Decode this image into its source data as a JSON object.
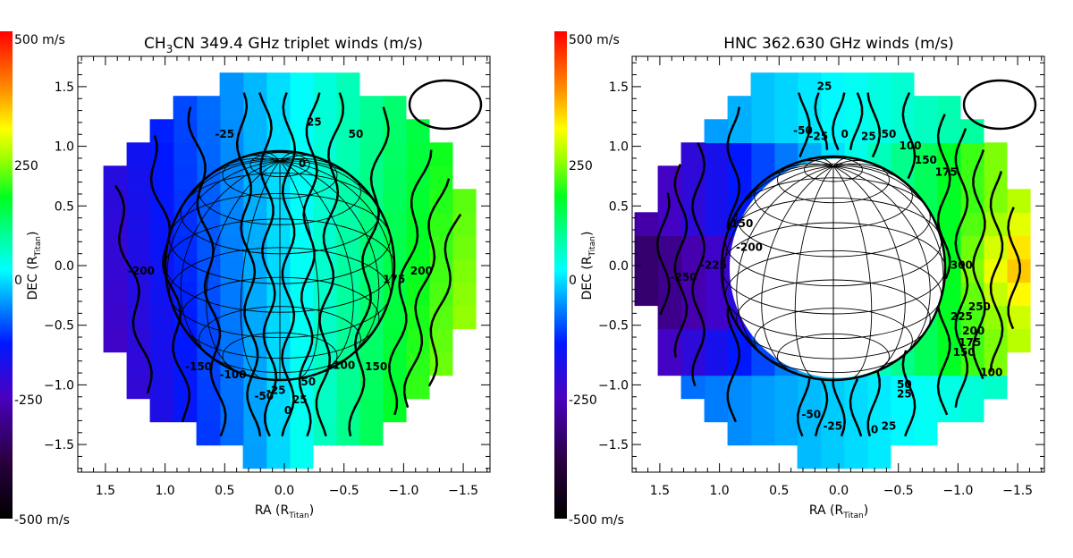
{
  "chart_data": [
    {
      "type": "heatmap",
      "panel": "left",
      "title": "CH3CN 349.4 GHz triplet winds (m/s)",
      "title_parts": {
        "pre": "CH",
        "sub": "3",
        "post": "CN 349.4 GHz triplet winds (m/s)"
      },
      "xlabel": "RA (R_Titan)",
      "xlabel_parts": {
        "pre": "RA (R",
        "sub": "Titan",
        "post": ")"
      },
      "ylabel": "DEC (R_Titan)",
      "ylabel_parts": {
        "pre": "DEC (R",
        "sub": "Titan",
        "post": ")"
      },
      "xlim": [
        1.75,
        -1.75
      ],
      "ylim": [
        -1.75,
        1.75
      ],
      "xticks": [
        1.5,
        1.0,
        0.5,
        0.0,
        -0.5,
        -1.0,
        -1.5
      ],
      "xtick_labels": [
        "1.5",
        "1.0",
        "0.5",
        "0.0",
        "−0.5",
        "−1.0",
        "−1.5"
      ],
      "yticks": [
        1.5,
        1.0,
        0.5,
        0.0,
        -0.5,
        -1.0,
        -1.5
      ],
      "ytick_labels": [
        "1.5",
        "1.0",
        "0.5",
        "0.0",
        "−0.5",
        "−1.0",
        "−1.5"
      ],
      "colorbar": {
        "min": -500,
        "max": 500,
        "units": "m/s",
        "labels": [
          "500 m/s",
          "250",
          "0",
          "-250",
          "-500 m/s"
        ],
        "label_values": [
          500,
          250,
          0,
          -250,
          -500
        ]
      },
      "wind_field": {
        "description": "velocity increases east-to-west; ~-225 at RA 1.5, ~0 near RA 0, ~+225 at RA -1.5",
        "ra_gradient_m_s_per_unit": -150
      },
      "contour_labels": [
        {
          "text": "-25",
          "ra": 0.5,
          "dec": 1.1
        },
        {
          "text": "25",
          "ra": -0.25,
          "dec": 1.2
        },
        {
          "text": "50",
          "ra": -0.6,
          "dec": 1.1
        },
        {
          "text": "0",
          "ra": -0.15,
          "dec": 0.85
        },
        {
          "text": "-200",
          "ra": 1.2,
          "dec": -0.05
        },
        {
          "text": "-150",
          "ra": 0.72,
          "dec": -0.85
        },
        {
          "text": "-100",
          "ra": 0.43,
          "dec": -0.92
        },
        {
          "text": "-50",
          "ra": 0.17,
          "dec": -1.1
        },
        {
          "text": "-25",
          "ra": 0.07,
          "dec": -1.05
        },
        {
          "text": "0",
          "ra": -0.03,
          "dec": -1.22
        },
        {
          "text": "25",
          "ra": -0.13,
          "dec": -1.13
        },
        {
          "text": "50",
          "ra": -0.2,
          "dec": -0.98
        },
        {
          "text": "100",
          "ra": -0.5,
          "dec": -0.84
        },
        {
          "text": "150",
          "ra": -0.77,
          "dec": -0.85
        },
        {
          "text": "175",
          "ra": -0.92,
          "dec": -0.12
        },
        {
          "text": "200",
          "ra": -1.15,
          "dec": -0.05
        }
      ],
      "blanked_disk": false,
      "beam": "ellipse top-right"
    },
    {
      "type": "heatmap",
      "panel": "right",
      "title": "HNC 362.630 GHz winds (m/s)",
      "title_parts": {
        "pre": "HNC 362.630 GHz winds (m/s)",
        "sub": "",
        "post": ""
      },
      "xlabel": "RA (R_Titan)",
      "xlabel_parts": {
        "pre": "RA (R",
        "sub": "Titan",
        "post": ")"
      },
      "ylabel": "DEC (R_Titan)",
      "ylabel_parts": {
        "pre": "DEC (R",
        "sub": "Titan",
        "post": ")"
      },
      "xlim": [
        1.75,
        -1.75
      ],
      "ylim": [
        -1.75,
        1.75
      ],
      "xticks": [
        1.5,
        1.0,
        0.5,
        0.0,
        -0.5,
        -1.0,
        -1.5
      ],
      "xtick_labels": [
        "1.5",
        "1.0",
        "0.5",
        "0.0",
        "−0.5",
        "−1.0",
        "−1.5"
      ],
      "yticks": [
        1.5,
        1.0,
        0.5,
        0.0,
        -0.5,
        -1.0,
        -1.5
      ],
      "ytick_labels": [
        "1.5",
        "1.0",
        "0.5",
        "0.0",
        "−0.5",
        "−1.0",
        "−1.5"
      ],
      "colorbar": {
        "min": -500,
        "max": 500,
        "units": "m/s",
        "labels": [
          "500 m/s",
          "250",
          "0",
          "-250",
          "-500 m/s"
        ],
        "label_values": [
          500,
          250,
          0,
          -250,
          -500
        ]
      },
      "wind_field": {
        "description": "limb-only winds; ~-250 to -300 east limb, ~+300 west limb, disk center blanked"
      },
      "contour_labels": [
        {
          "text": "25",
          "ra": 0.12,
          "dec": 1.5
        },
        {
          "text": "-50",
          "ra": 0.3,
          "dec": 1.13
        },
        {
          "text": "-25",
          "ra": 0.17,
          "dec": 1.08
        },
        {
          "text": "0",
          "ra": -0.05,
          "dec": 1.1
        },
        {
          "text": "25",
          "ra": -0.25,
          "dec": 1.08
        },
        {
          "text": "50",
          "ra": -0.42,
          "dec": 1.1
        },
        {
          "text": "100",
          "ra": -0.6,
          "dec": 1.0
        },
        {
          "text": "150",
          "ra": -0.73,
          "dec": 0.88
        },
        {
          "text": "175",
          "ra": -0.9,
          "dec": 0.78
        },
        {
          "text": "-150",
          "ra": 0.83,
          "dec": 0.35
        },
        {
          "text": "-200",
          "ra": 0.75,
          "dec": 0.15
        },
        {
          "text": "-225",
          "ra": 1.05,
          "dec": 0.0
        },
        {
          "text": "-250",
          "ra": 1.3,
          "dec": -0.1
        },
        {
          "text": "300",
          "ra": -1.03,
          "dec": 0.0
        },
        {
          "text": "250",
          "ra": -1.18,
          "dec": -0.35
        },
        {
          "text": "225",
          "ra": -1.03,
          "dec": -0.43
        },
        {
          "text": "200",
          "ra": -1.13,
          "dec": -0.55
        },
        {
          "text": "175",
          "ra": -1.1,
          "dec": -0.65
        },
        {
          "text": "150",
          "ra": -1.05,
          "dec": -0.73
        },
        {
          "text": "100",
          "ra": -1.28,
          "dec": -0.9
        },
        {
          "text": "50",
          "ra": -0.55,
          "dec": -1.0
        },
        {
          "text": "25",
          "ra": -0.55,
          "dec": -1.08
        },
        {
          "text": "-50",
          "ra": 0.23,
          "dec": -1.25
        },
        {
          "text": "-25",
          "ra": 0.05,
          "dec": -1.35
        },
        {
          "text": "0",
          "ra": -0.3,
          "dec": -1.38
        },
        {
          "text": "25",
          "ra": -0.42,
          "dec": -1.35
        }
      ],
      "blanked_disk": true,
      "beam": "ellipse top-right"
    }
  ]
}
